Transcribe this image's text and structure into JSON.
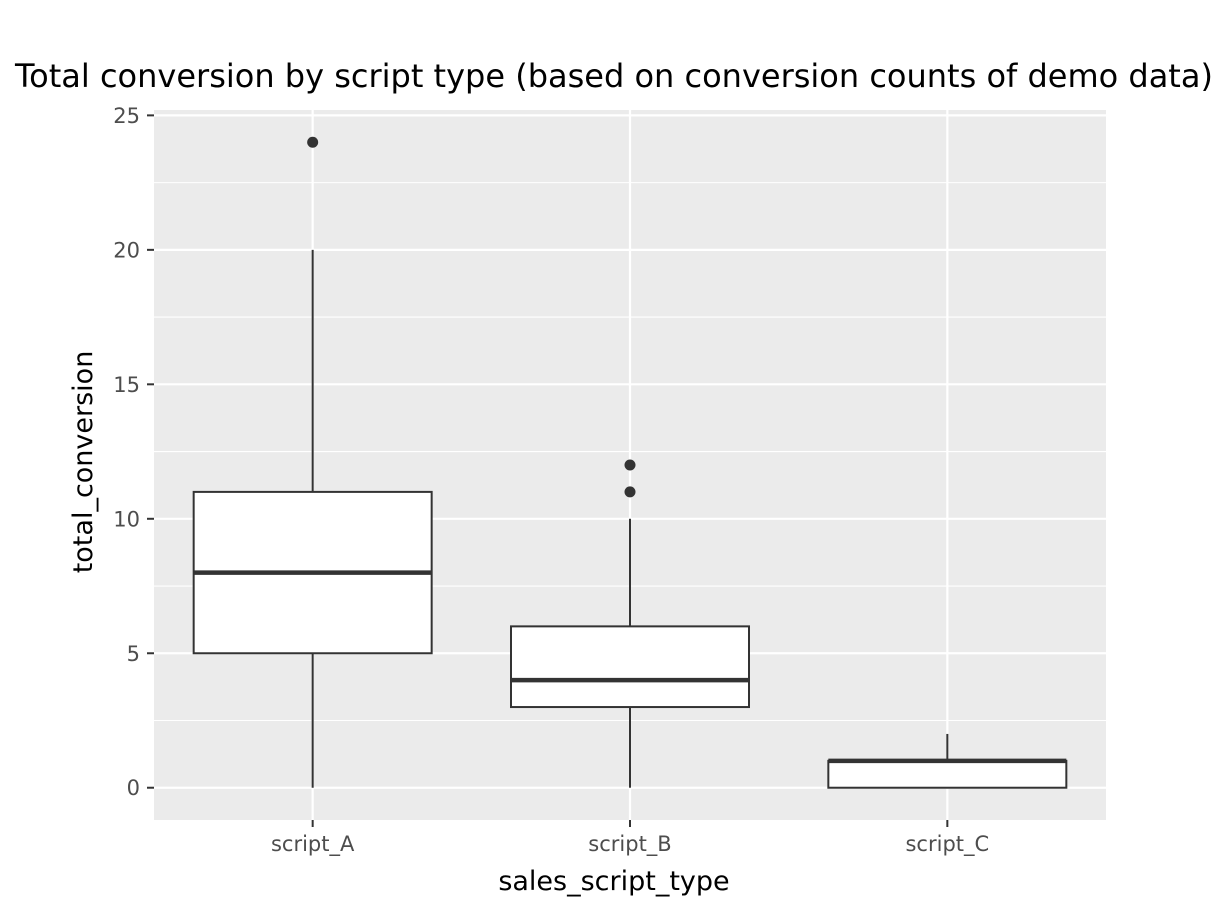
{
  "chart_data": {
    "type": "box",
    "title": "Total conversion by script type (based on conversion counts of demo data)",
    "xlabel": "sales_script_type",
    "ylabel": "total_conversion",
    "ylim": [
      -1.2,
      25.2
    ],
    "yticks": [
      0,
      5,
      10,
      15,
      20,
      25
    ],
    "grid": true,
    "legend": "none",
    "categories": [
      "script_A",
      "script_B",
      "script_C"
    ],
    "boxes": [
      {
        "category": "script_A",
        "whisker_low": 0,
        "q1": 5,
        "median": 8,
        "q3": 11,
        "whisker_high": 20,
        "outliers": [
          24
        ]
      },
      {
        "category": "script_B",
        "whisker_low": 0,
        "q1": 3,
        "median": 4,
        "q3": 6,
        "whisker_high": 10,
        "outliers": [
          11,
          12
        ]
      },
      {
        "category": "script_C",
        "whisker_low": 0,
        "q1": 0,
        "median": 1,
        "q3": 1,
        "whisker_high": 2,
        "outliers": []
      }
    ],
    "colors": {
      "panel": "#ebebeb",
      "grid": "#ffffff",
      "box_fill": "#ffffff",
      "box_line": "#333333",
      "outlier": "#333333",
      "tick": "#333333",
      "tick_label": "#4d4d4d"
    }
  }
}
